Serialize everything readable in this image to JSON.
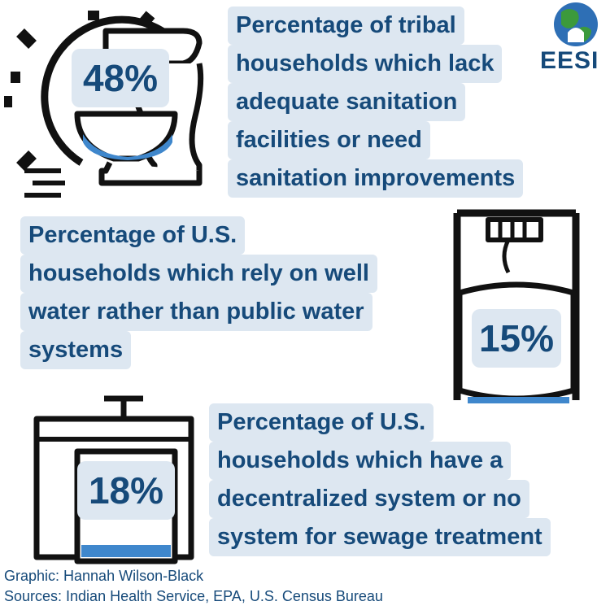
{
  "logo": {
    "text": "EESI"
  },
  "items": [
    {
      "stat": "48%",
      "lines": [
        "Percentage of tribal",
        "households which lack",
        "adequate sanitation",
        "facilities or need",
        "sanitation improvements"
      ]
    },
    {
      "stat": "15%",
      "lines": [
        "Percentage of U.S.",
        "households which rely on well",
        "water rather than public water",
        "systems"
      ]
    },
    {
      "stat": "18%",
      "lines": [
        "Percentage of U.S.",
        "households which have a",
        "decentralized system or no",
        "system for sewage treatment"
      ]
    }
  ],
  "credits": {
    "graphic": "Graphic: Hannah Wilson-Black",
    "sources": "Sources: Indian Health Service, EPA, U.S. Census Bureau"
  }
}
